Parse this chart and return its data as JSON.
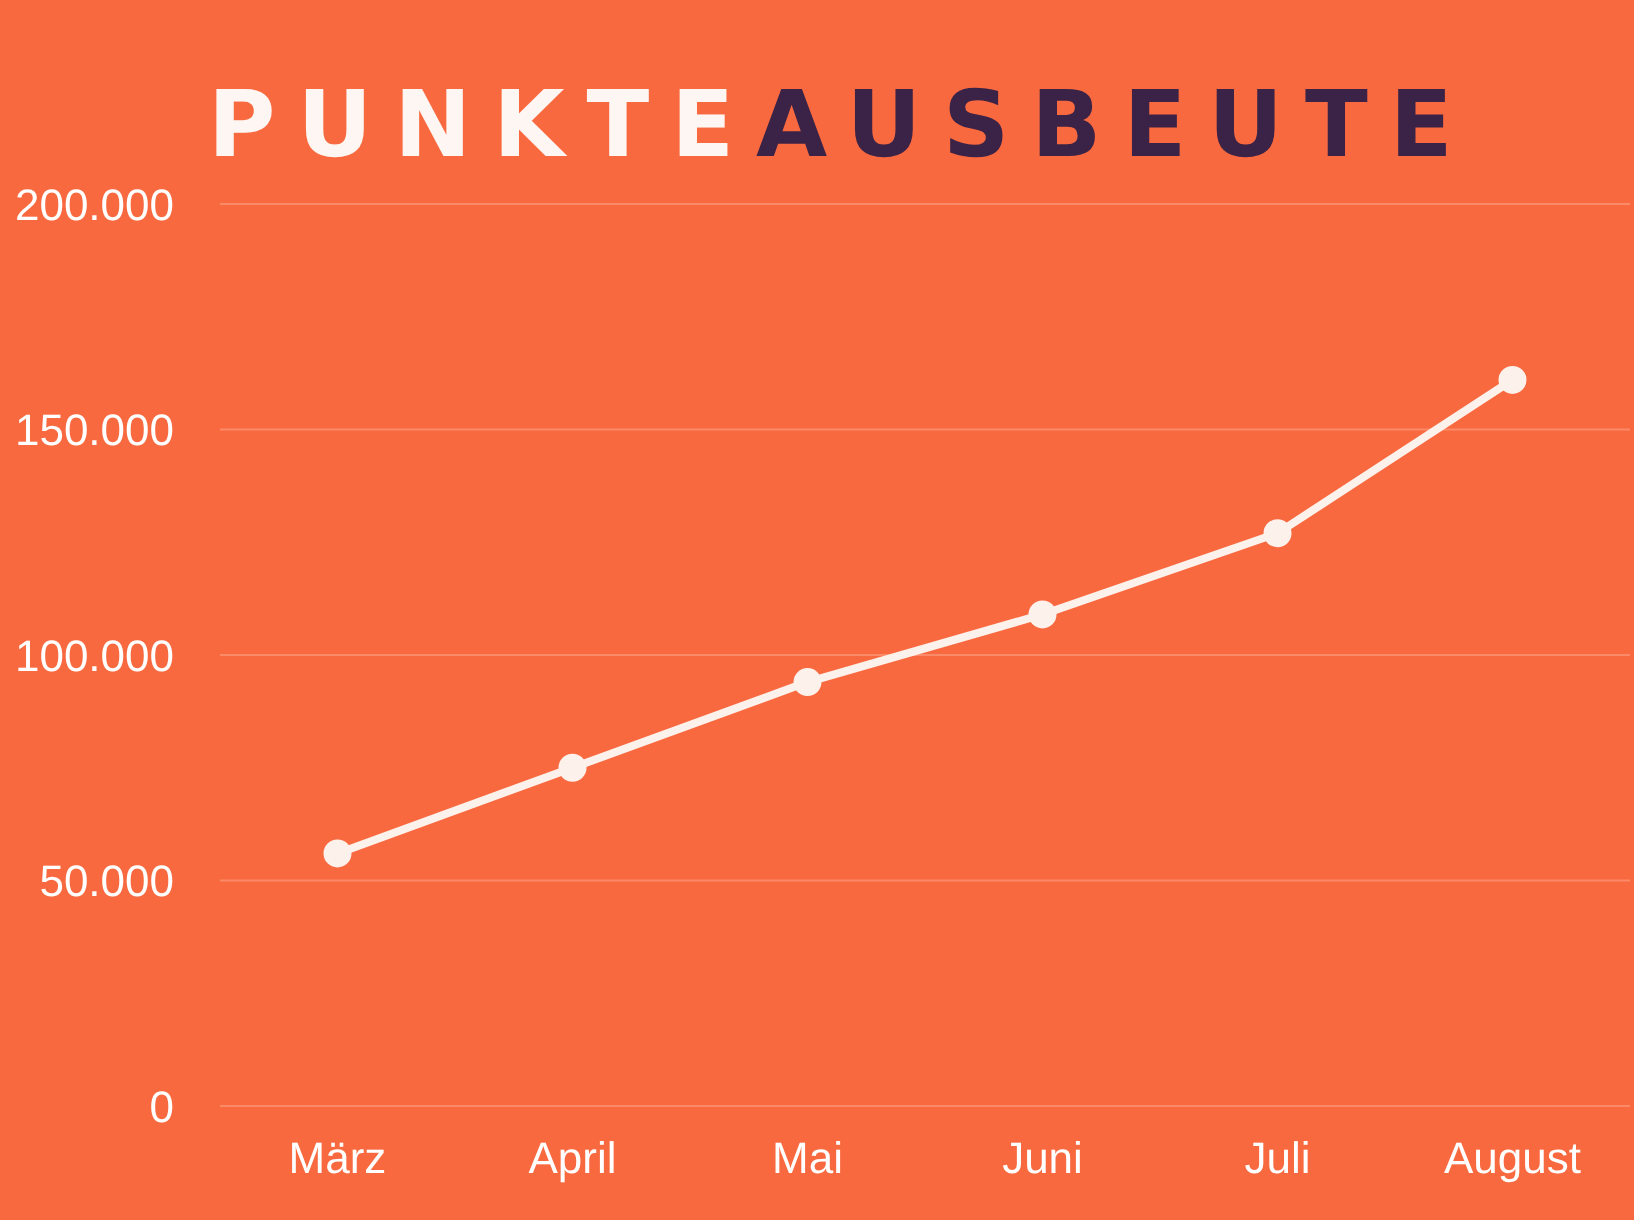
{
  "chart_data": {
    "type": "line",
    "title": "PUNKTE",
    "subtitle": "AUSBEUTE",
    "categories": [
      "März",
      "April",
      "Mai",
      "Juni",
      "Juli",
      "August"
    ],
    "series": [
      {
        "color": "#fdf1ec",
        "values": [
          56000,
          75000,
          94000,
          109000,
          127000,
          161000
        ]
      }
    ],
    "ylim": [
      0,
      200000
    ],
    "yticks": [
      {
        "value": 0,
        "label": "0"
      },
      {
        "value": 50000,
        "label": "50.000"
      },
      {
        "value": 100000,
        "label": "100.000"
      },
      {
        "value": 150000,
        "label": "150.000"
      },
      {
        "value": 200000,
        "label": "200.000"
      }
    ],
    "grid": "y",
    "legend": false,
    "marker": "circle",
    "line_style": "solid"
  }
}
